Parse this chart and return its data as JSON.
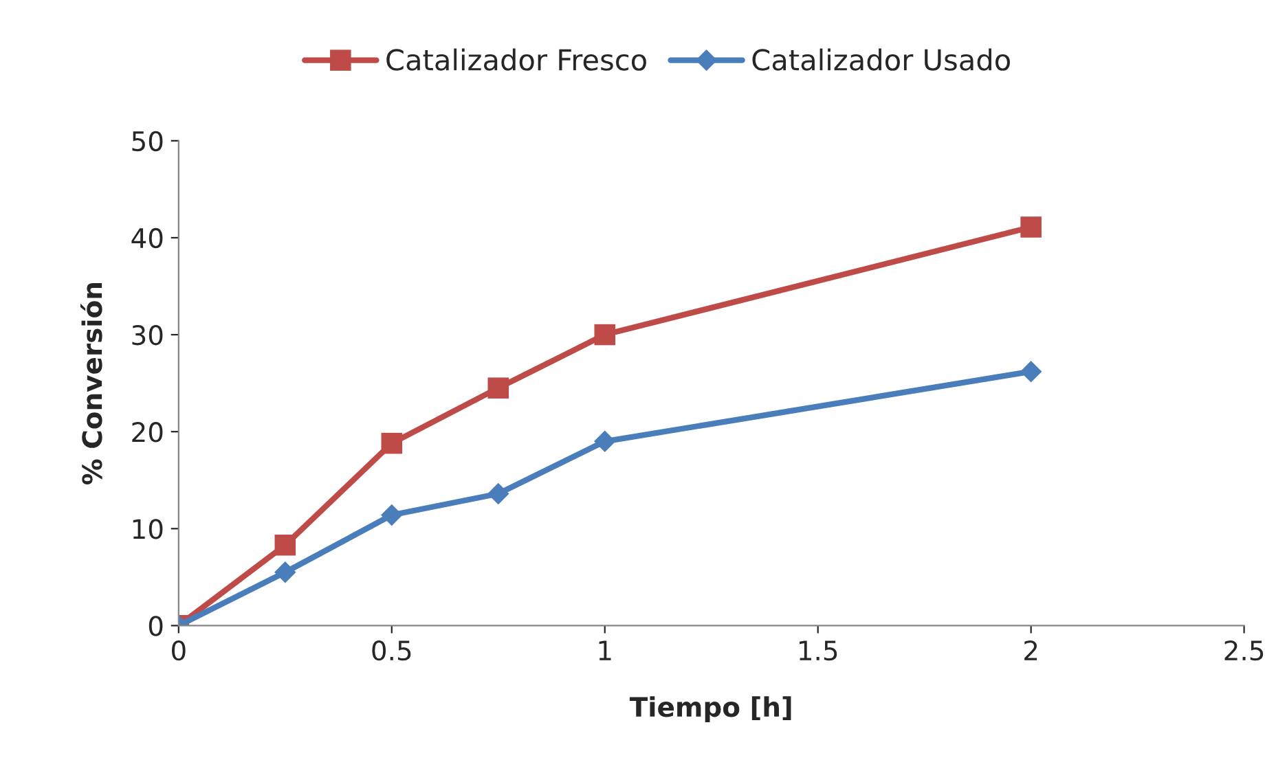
{
  "chart_data": {
    "type": "line",
    "xlabel": "Tiempo [h]",
    "ylabel": "% Conversión",
    "xlim": [
      0,
      2.5
    ],
    "xticks": [
      0,
      0.5,
      1,
      1.5,
      2,
      2.5
    ],
    "ylim": [
      0,
      50
    ],
    "yticks": [
      0,
      10,
      20,
      30,
      40,
      50
    ],
    "grid": false,
    "legend": "top",
    "line_style": "solid",
    "series": [
      {
        "name": "Catalizador Fresco",
        "color": "#be4b48",
        "marker": "square",
        "x": [
          0,
          0.25,
          0.5,
          0.75,
          1,
          2
        ],
        "values": [
          0,
          8.3,
          18.8,
          24.5,
          30.0,
          41.1
        ]
      },
      {
        "name": "Catalizador Usado",
        "color": "#4a7ebb",
        "marker": "diamond",
        "x": [
          0,
          0.25,
          0.5,
          0.75,
          1,
          2
        ],
        "values": [
          0,
          5.5,
          11.4,
          13.6,
          19.0,
          26.2
        ]
      }
    ]
  }
}
